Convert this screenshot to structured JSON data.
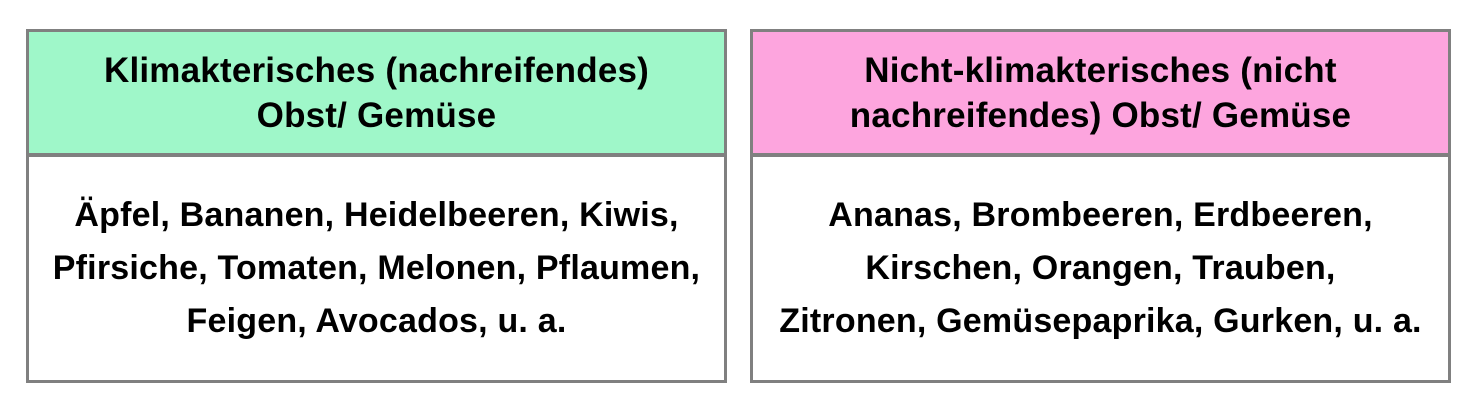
{
  "colors": {
    "climacteric_header_bg": "#9ff7c9",
    "non_climacteric_header_bg": "#fda5de",
    "border": "#808080",
    "text": "#000000",
    "page_bg": "#ffffff"
  },
  "cards": [
    {
      "id": "climacteric",
      "header": "Klimakterisches (nachreifendes)\nObst/ Gemüse",
      "body": "Äpfel, Bananen, Heidelbeeren, Kiwis,\nPfirsiche, Tomaten, Melonen, Pflaumen,\nFeigen, Avocados, u. a."
    },
    {
      "id": "non-climacteric",
      "header": "Nicht-klimakterisches (nicht\nnachreifendes) Obst/ Gemüse",
      "body": "Ananas, Brombeeren, Erdbeeren,\nKirschen, Orangen, Trauben,\nZitronen, Gemüsepaprika, Gurken, u. a."
    }
  ]
}
